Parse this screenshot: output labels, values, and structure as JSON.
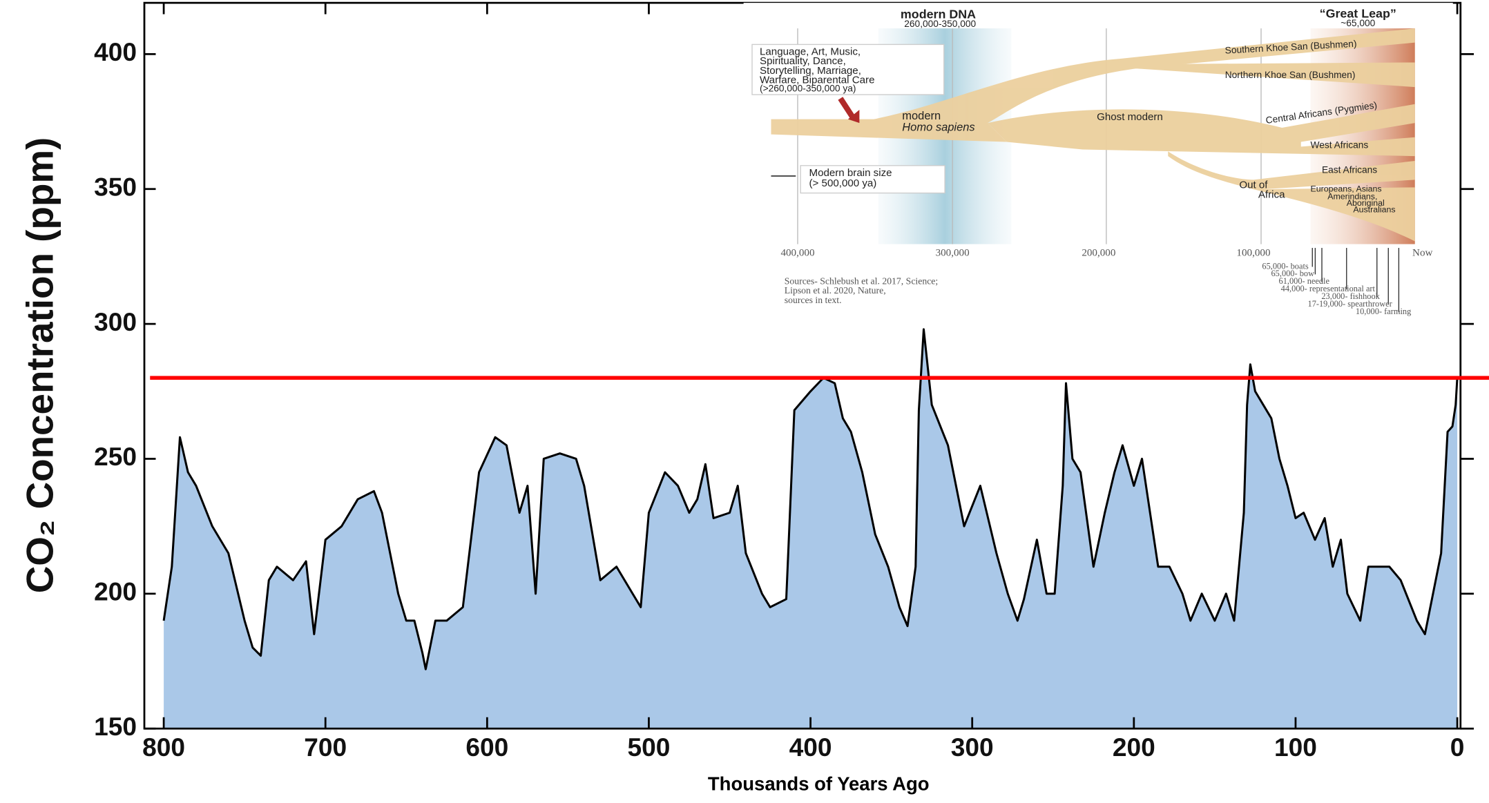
{
  "chart_data": {
    "type": "area",
    "x_label": "Thousands of Years Ago",
    "y_label": "CO₂ Concentration (ppm)",
    "x": [
      800,
      795,
      790,
      785,
      780,
      770,
      760,
      750,
      745,
      740,
      735,
      730,
      720,
      712,
      707,
      700,
      690,
      680,
      670,
      665,
      660,
      655,
      650,
      645,
      640,
      638,
      632,
      625,
      615,
      605,
      595,
      588,
      580,
      575,
      570,
      565,
      555,
      545,
      540,
      530,
      520,
      510,
      505,
      500,
      490,
      482,
      475,
      470,
      465,
      460,
      450,
      445,
      440,
      430,
      425,
      415,
      410,
      400,
      392,
      385,
      380,
      375,
      368,
      360,
      352,
      345,
      340,
      335,
      333,
      330,
      325,
      315,
      305,
      295,
      285,
      278,
      272,
      268,
      260,
      254,
      249,
      244,
      242,
      238,
      233,
      225,
      218,
      212,
      207,
      200,
      195,
      185,
      178,
      170,
      165,
      158,
      150,
      143,
      138,
      132,
      130,
      128,
      125,
      120,
      115,
      110,
      105,
      100,
      95,
      88,
      82,
      77,
      72,
      68,
      60,
      55,
      50,
      42,
      35,
      25,
      20,
      15,
      10,
      6,
      3,
      1,
      0
    ],
    "series": [
      {
        "color": "#aac8e8",
        "line_color": "#000000",
        "values": [
          190,
          210,
          258,
          245,
          240,
          225,
          215,
          190,
          180,
          177,
          205,
          210,
          205,
          212,
          185,
          220,
          225,
          235,
          238,
          230,
          215,
          200,
          190,
          190,
          178,
          172,
          190,
          190,
          195,
          245,
          258,
          255,
          230,
          240,
          200,
          250,
          252,
          250,
          240,
          205,
          210,
          200,
          195,
          230,
          245,
          240,
          230,
          235,
          248,
          228,
          230,
          240,
          215,
          200,
          195,
          198,
          268,
          275,
          280,
          278,
          265,
          260,
          245,
          222,
          210,
          195,
          188,
          210,
          268,
          298,
          270,
          255,
          225,
          240,
          215,
          200,
          190,
          198,
          220,
          200,
          200,
          240,
          278,
          250,
          245,
          210,
          230,
          245,
          255,
          240,
          250,
          210,
          210,
          200,
          190,
          200,
          190,
          200,
          190,
          230,
          270,
          285,
          275,
          270,
          265,
          250,
          240,
          228,
          230,
          220,
          228,
          210,
          220,
          200,
          190,
          210,
          210,
          210,
          205,
          190,
          185,
          200,
          215,
          260,
          262,
          270,
          280
        ]
      }
    ],
    "xlim": [
      812,
      -2
    ],
    "ylim": [
      150,
      419
    ],
    "xticks": [
      800,
      700,
      600,
      500,
      400,
      300,
      200,
      100,
      0
    ],
    "yticks": [
      150,
      200,
      250,
      300,
      350,
      400
    ],
    "reference_line": {
      "value": 280,
      "color": "#ff0000"
    }
  },
  "inset": {
    "dna_title": "modern DNA",
    "dna_range": "260,000-350,000",
    "leap_title": "“Great Leap”",
    "leap_value": "~65,000",
    "box1": [
      "Language, Art, Music,",
      "Spirituality, Dance,",
      "Storytelling, Marriage,",
      "Warfare, Biparental Care",
      "(>260,000-350,000 ya)"
    ],
    "box2": [
      "Modern brain size",
      "(> 500,000 ya)"
    ],
    "stem": [
      "modern",
      "Homo sapiens"
    ],
    "ghost": "Ghost modern",
    "out": [
      "Out of",
      "Africa"
    ],
    "branches": [
      "Southern Khoe San (Bushmen)",
      "Northern Khoe San (Bushmen)",
      "Central Africans (Pygmies)",
      "West Africans",
      "East Africans",
      "Europeans, Asians",
      "Amerindians,",
      "Aboriginal",
      "Australians"
    ],
    "axis": [
      "400,000",
      "300,000",
      "200,000",
      "100,000",
      "Now"
    ],
    "sources": [
      "Sources- Schlebush et al. 2017, Science;",
      "Lipson et al. 2020, Nature,",
      "sources in text."
    ],
    "events": [
      "65,000- boats",
      "65,000- bow",
      "61,000- needle",
      "44,000- representational art",
      "23,000- fishhook",
      "17-19,000- spearthrower",
      "10,000- farming"
    ]
  }
}
